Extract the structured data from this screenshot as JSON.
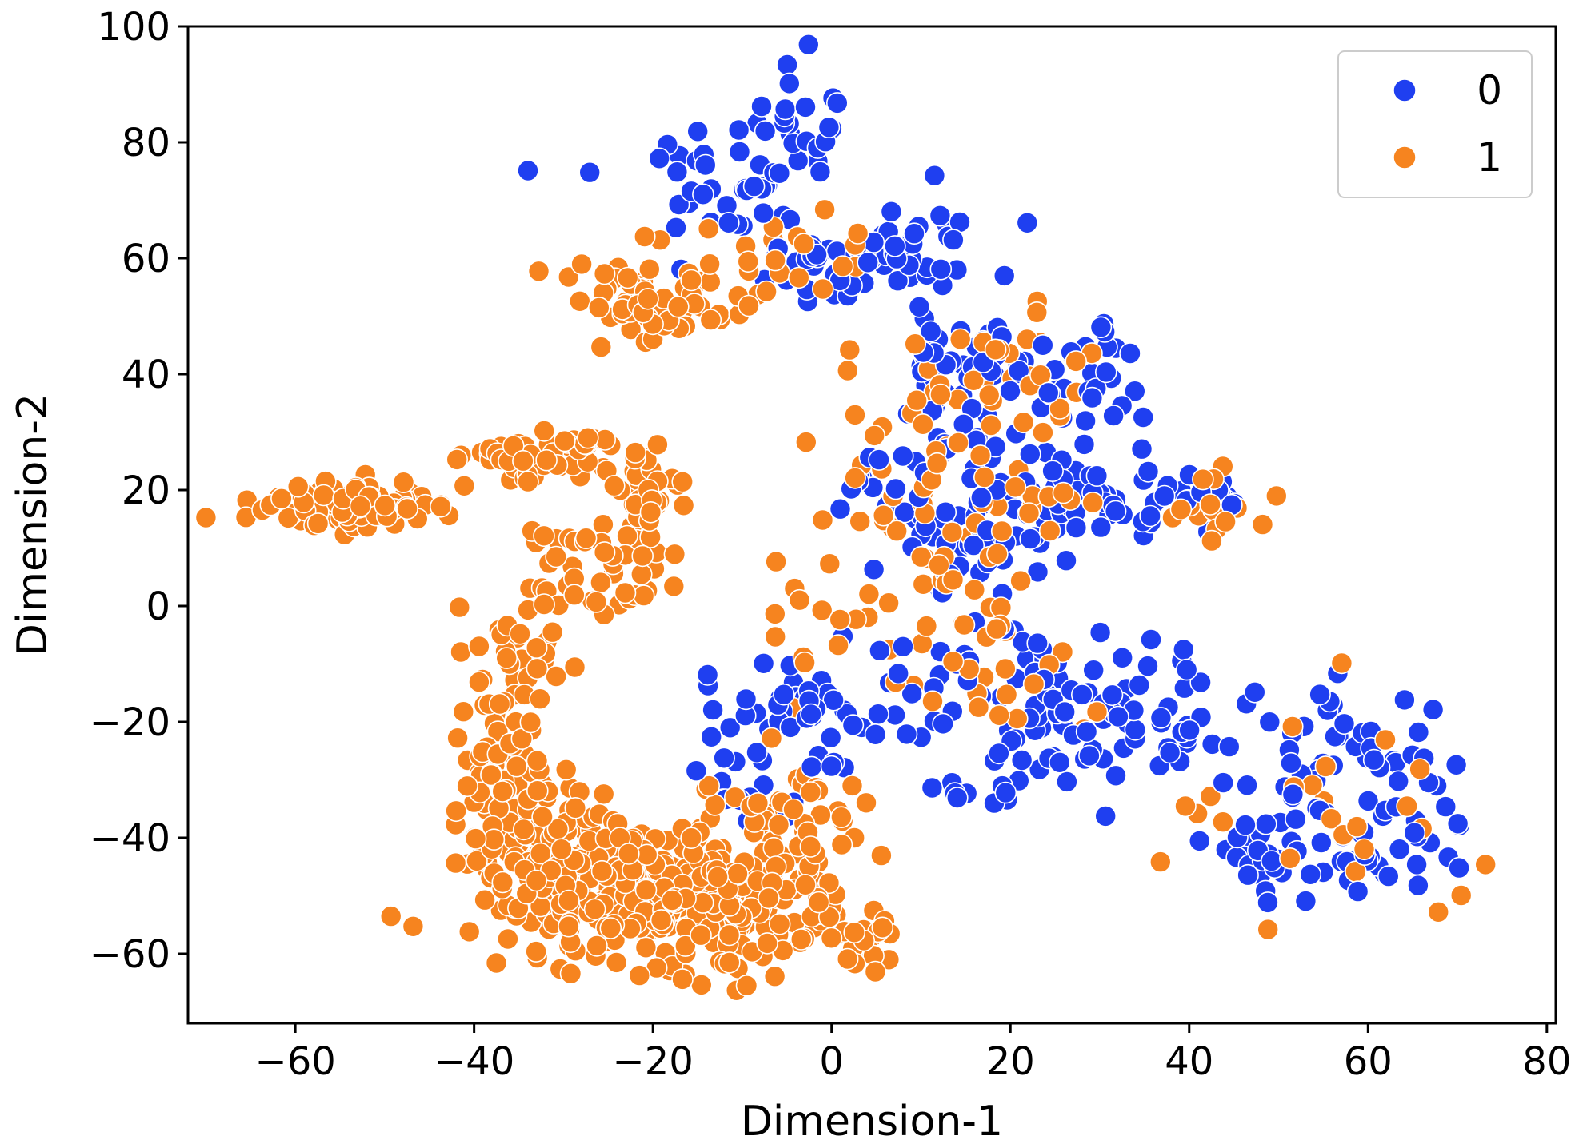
{
  "chart_data": {
    "type": "scatter",
    "title": "",
    "xlabel": "Dimension-1",
    "ylabel": "Dimension-2",
    "xlim": [
      -72,
      81
    ],
    "ylim": [
      -72,
      100
    ],
    "xticks": [
      -60,
      -40,
      -20,
      0,
      20,
      40,
      60,
      80
    ],
    "yticks": [
      -60,
      -40,
      -20,
      0,
      20,
      40,
      60,
      80,
      100
    ],
    "xtick_labels": [
      "−60",
      "−40",
      "−20",
      "0",
      "20",
      "40",
      "60",
      "80"
    ],
    "ytick_labels": [
      "−60",
      "−40",
      "−20",
      "0",
      "20",
      "40",
      "60",
      "80",
      "100"
    ],
    "grid": false,
    "legend": {
      "position": "top-right",
      "entries": [
        {
          "label": "0",
          "color": "#1f3ff0"
        },
        {
          "label": "1",
          "color": "#f6841f"
        }
      ]
    },
    "series": [
      {
        "name": "0",
        "color": "#1f3ff0",
        "clusters": [
          {
            "cx": -3,
            "cy": 85,
            "sx": 2.5,
            "sy": 5,
            "n": 22
          },
          {
            "cx": -13,
            "cy": 73,
            "sx": 6,
            "sy": 5,
            "n": 38
          },
          {
            "cx": 2,
            "cy": 60,
            "sx": 6,
            "sy": 4,
            "n": 50
          },
          {
            "cx": 9,
            "cy": 63,
            "sx": 4,
            "sy": 4,
            "n": 15
          },
          {
            "cx": 20,
            "cy": 42,
            "sx": 7,
            "sy": 5,
            "n": 55
          },
          {
            "cx": 29,
            "cy": 37,
            "sx": 4,
            "sy": 4,
            "n": 15
          },
          {
            "cx": 18,
            "cy": 20,
            "sx": 9,
            "sy": 6,
            "n": 75
          },
          {
            "cx": 29,
            "cy": 15,
            "sx": 5,
            "sy": 4,
            "n": 25
          },
          {
            "cx": 42,
            "cy": 19,
            "sx": 3,
            "sy": 2,
            "n": 18
          },
          {
            "cx": 16,
            "cy": 7,
            "sx": 3,
            "sy": 3,
            "n": 15
          },
          {
            "cx": -3,
            "cy": -18,
            "sx": 6,
            "sy": 7,
            "n": 50
          },
          {
            "cx": -9,
            "cy": -30,
            "sx": 3,
            "sy": 3,
            "n": 14
          },
          {
            "cx": 18,
            "cy": -12,
            "sx": 7,
            "sy": 6,
            "n": 40
          },
          {
            "cx": 30,
            "cy": -20,
            "sx": 6,
            "sy": 5,
            "n": 45
          },
          {
            "cx": 20,
            "cy": -30,
            "sx": 5,
            "sy": 4,
            "n": 15
          },
          {
            "cx": 40,
            "cy": -20,
            "sx": 3,
            "sy": 5,
            "n": 12
          },
          {
            "cx": 55,
            "cy": -25,
            "sx": 6,
            "sy": 7,
            "n": 40
          },
          {
            "cx": 58,
            "cy": -42,
            "sx": 7,
            "sy": 5,
            "n": 45
          },
          {
            "cx": 48,
            "cy": -43,
            "sx": 3,
            "sy": 3,
            "n": 14
          },
          {
            "cx": 67,
            "cy": -30,
            "sx": 4,
            "sy": 8,
            "n": 14
          }
        ]
      },
      {
        "name": "1",
        "color": "#f6841f",
        "clusters": [
          {
            "cx": -54,
            "cy": 17,
            "sx": 5,
            "sy": 2,
            "n": 85
          },
          {
            "cx": -34,
            "cy": 25,
            "sx": 4,
            "sy": 2,
            "n": 40
          },
          {
            "cx": -28,
            "cy": 28,
            "sx": 2,
            "sy": 1.5,
            "n": 15
          },
          {
            "cx": -22,
            "cy": 53,
            "sx": 4,
            "sy": 4,
            "n": 45
          },
          {
            "cx": -17,
            "cy": 50,
            "sx": 3,
            "sy": 2,
            "n": 15
          },
          {
            "cx": -26,
            "cy": 6,
            "sx": 4,
            "sy": 5,
            "n": 40
          },
          {
            "cx": -21,
            "cy": 20,
            "sx": 2,
            "sy": 5,
            "n": 45
          },
          {
            "cx": -35,
            "cy": -7,
            "sx": 3,
            "sy": 4,
            "n": 25
          },
          {
            "cx": -36,
            "cy": -25,
            "sx": 3,
            "sy": 8,
            "n": 60
          },
          {
            "cx": -32,
            "cy": -42,
            "sx": 5,
            "sy": 7,
            "n": 130
          },
          {
            "cx": -22,
            "cy": -50,
            "sx": 6,
            "sy": 6,
            "n": 160
          },
          {
            "cx": -10,
            "cy": -52,
            "sx": 6,
            "sy": 6,
            "n": 170
          },
          {
            "cx": -5,
            "cy": -35,
            "sx": 5,
            "sy": 6,
            "n": 40
          },
          {
            "cx": 3,
            "cy": -58,
            "sx": 3,
            "sy": 3,
            "n": 20
          },
          {
            "cx": 18,
            "cy": 40,
            "sx": 7,
            "sy": 6,
            "n": 40
          },
          {
            "cx": 14,
            "cy": 16,
            "sx": 7,
            "sy": 6,
            "n": 50
          },
          {
            "cx": 16,
            "cy": -10,
            "sx": 8,
            "sy": 8,
            "n": 30
          },
          {
            "cx": 42,
            "cy": 18,
            "sx": 3,
            "sy": 3,
            "n": 15
          },
          {
            "cx": -2,
            "cy": 62,
            "sx": 6,
            "sy": 5,
            "n": 20
          },
          {
            "cx": 58,
            "cy": -35,
            "sx": 7,
            "sy": 9,
            "n": 25
          },
          {
            "cx": 0,
            "cy": 0,
            "sx": 6,
            "sy": 6,
            "n": 15
          }
        ]
      }
    ]
  }
}
